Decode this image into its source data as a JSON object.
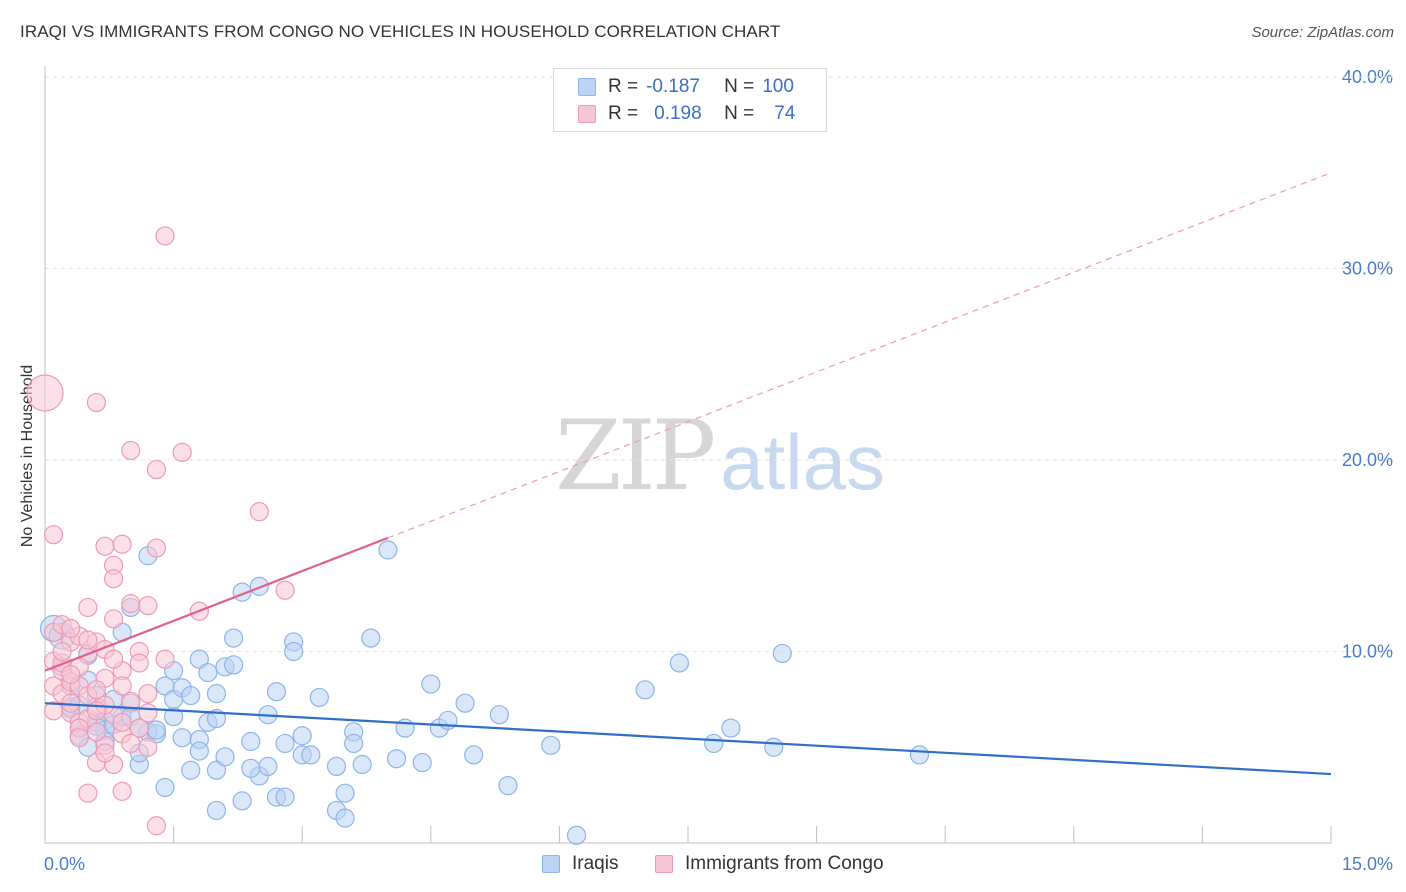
{
  "title": "IRAQI VS IMMIGRANTS FROM CONGO NO VEHICLES IN HOUSEHOLD CORRELATION CHART",
  "source": "Source: ZipAtlas.com",
  "colors": {
    "blue": "#8fb4ea",
    "blue_fill": "#bcd3f3",
    "blue_line": "#2f6fca",
    "pink": "#ef9ab5",
    "pink_fill": "#f7c6d5",
    "pink_line": "#e0608c",
    "tick": "#4a7cc9",
    "grid": "#e2e2e2"
  },
  "legend": {
    "rows": [
      {
        "r_label": "R =",
        "r_value": "-0.187",
        "n_label": "N =",
        "n_value": "100"
      },
      {
        "r_label": "R =",
        "r_value": "0.198",
        "n_label": "N =",
        "n_value": "74"
      }
    ]
  },
  "bottom_legend": [
    "Iraqis",
    "Immigrants from Congo"
  ],
  "watermark": {
    "zip": "ZIP",
    "atlas": "atlas"
  },
  "chart_data": {
    "type": "scatter",
    "title": "IRAQI VS IMMIGRANTS FROM CONGO NO VEHICLES IN HOUSEHOLD CORRELATION CHART",
    "xlabel": "",
    "ylabel": "No Vehicles in Household",
    "xlim": [
      0,
      15
    ],
    "ylim": [
      0,
      40
    ],
    "x_tick_labels": [
      "0.0%",
      "15.0%"
    ],
    "y_ticks": [
      10,
      20,
      30,
      40
    ],
    "y_tick_labels": [
      "10.0%",
      "20.0%",
      "30.0%",
      "40.0%"
    ],
    "grid": true,
    "legend_position": "top-center",
    "series": [
      {
        "name": "Iraqis",
        "color": "#8fb4ea",
        "r": -0.187,
        "n": 100,
        "trend": {
          "x": [
            0,
            15
          ],
          "y": [
            7.3,
            3.6
          ],
          "dashed_from": null
        },
        "points": [
          [
            0.1,
            11.2
          ],
          [
            0.2,
            10.8
          ],
          [
            0.2,
            9.2
          ],
          [
            0.3,
            8.2
          ],
          [
            0.3,
            7.1
          ],
          [
            0.4,
            6.0
          ],
          [
            0.4,
            5.6
          ],
          [
            0.5,
            9.8
          ],
          [
            0.5,
            5.0
          ],
          [
            0.6,
            7.7
          ],
          [
            0.6,
            6.3
          ],
          [
            0.7,
            6.4
          ],
          [
            0.7,
            5.9
          ],
          [
            0.8,
            7.5
          ],
          [
            0.8,
            6.2
          ],
          [
            0.9,
            6.6
          ],
          [
            0.9,
            11.0
          ],
          [
            1.0,
            12.3
          ],
          [
            1.0,
            7.3
          ],
          [
            1.1,
            4.1
          ],
          [
            1.1,
            4.7
          ],
          [
            1.2,
            15.0
          ],
          [
            1.2,
            5.8
          ],
          [
            1.3,
            5.7
          ],
          [
            1.4,
            8.2
          ],
          [
            1.4,
            2.9
          ],
          [
            1.5,
            9.0
          ],
          [
            1.5,
            6.6
          ],
          [
            1.5,
            7.5
          ],
          [
            1.6,
            8.1
          ],
          [
            1.6,
            5.5
          ],
          [
            1.7,
            3.8
          ],
          [
            1.7,
            7.7
          ],
          [
            1.8,
            9.6
          ],
          [
            1.8,
            5.4
          ],
          [
            1.9,
            8.9
          ],
          [
            1.9,
            6.3
          ],
          [
            2.0,
            3.8
          ],
          [
            2.0,
            1.7
          ],
          [
            2.0,
            7.8
          ],
          [
            2.1,
            4.5
          ],
          [
            2.1,
            9.2
          ],
          [
            2.2,
            10.7
          ],
          [
            2.2,
            9.3
          ],
          [
            2.3,
            13.1
          ],
          [
            2.3,
            2.2
          ],
          [
            2.4,
            5.3
          ],
          [
            2.5,
            13.4
          ],
          [
            2.5,
            3.5
          ],
          [
            2.6,
            6.7
          ],
          [
            2.6,
            4.0
          ],
          [
            2.7,
            2.4
          ],
          [
            2.7,
            7.9
          ],
          [
            2.8,
            5.2
          ],
          [
            2.8,
            2.4
          ],
          [
            2.9,
            10.5
          ],
          [
            2.9,
            10.0
          ],
          [
            3.0,
            4.6
          ],
          [
            3.1,
            4.6
          ],
          [
            3.2,
            7.6
          ],
          [
            3.4,
            1.7
          ],
          [
            3.4,
            4.0
          ],
          [
            3.5,
            2.6
          ],
          [
            3.5,
            1.3
          ],
          [
            3.6,
            5.8
          ],
          [
            3.6,
            5.2
          ],
          [
            3.7,
            4.1
          ],
          [
            3.8,
            10.7
          ],
          [
            4.0,
            15.3
          ],
          [
            4.1,
            4.4
          ],
          [
            4.2,
            6.0
          ],
          [
            4.4,
            4.2
          ],
          [
            4.5,
            8.3
          ],
          [
            4.6,
            6.0
          ],
          [
            4.7,
            6.4
          ],
          [
            4.9,
            7.3
          ],
          [
            5.0,
            4.6
          ],
          [
            5.3,
            6.7
          ],
          [
            5.4,
            3.0
          ],
          [
            5.9,
            5.1
          ],
          [
            6.2,
            0.4
          ],
          [
            7.0,
            8.0
          ],
          [
            7.4,
            9.4
          ],
          [
            7.8,
            5.2
          ],
          [
            8.0,
            6.0
          ],
          [
            8.5,
            5.0
          ],
          [
            8.6,
            9.9
          ],
          [
            10.2,
            4.6
          ],
          [
            1.3,
            5.9
          ],
          [
            0.6,
            6.1
          ],
          [
            1.0,
            6.6
          ],
          [
            2.0,
            6.5
          ],
          [
            0.3,
            7.0
          ],
          [
            0.5,
            8.5
          ],
          [
            1.8,
            4.8
          ],
          [
            0.4,
            7.2
          ],
          [
            0.7,
            5.3
          ],
          [
            1.1,
            6.0
          ],
          [
            2.4,
            3.9
          ],
          [
            3.0,
            5.6
          ]
        ]
      },
      {
        "name": "Immigrants from Congo",
        "color": "#ef9ab5",
        "r": 0.198,
        "n": 74,
        "trend": {
          "x": [
            0,
            15
          ],
          "y": [
            9.0,
            35.0
          ],
          "dashed_from": 4.0
        },
        "points": [
          [
            0.0,
            23.5
          ],
          [
            0.1,
            16.1
          ],
          [
            0.1,
            11.0
          ],
          [
            0.1,
            9.5
          ],
          [
            0.1,
            8.2
          ],
          [
            0.2,
            11.4
          ],
          [
            0.2,
            9.0
          ],
          [
            0.2,
            7.8
          ],
          [
            0.3,
            10.5
          ],
          [
            0.3,
            8.4
          ],
          [
            0.3,
            6.8
          ],
          [
            0.4,
            10.8
          ],
          [
            0.4,
            8.2
          ],
          [
            0.4,
            6.3
          ],
          [
            0.5,
            12.3
          ],
          [
            0.5,
            9.9
          ],
          [
            0.5,
            6.5
          ],
          [
            0.5,
            2.6
          ],
          [
            0.6,
            23.0
          ],
          [
            0.6,
            10.5
          ],
          [
            0.6,
            7.1
          ],
          [
            0.6,
            4.2
          ],
          [
            0.7,
            15.5
          ],
          [
            0.7,
            8.6
          ],
          [
            0.7,
            5.1
          ],
          [
            0.8,
            14.5
          ],
          [
            0.8,
            11.7
          ],
          [
            0.8,
            6.7
          ],
          [
            0.8,
            4.1
          ],
          [
            0.9,
            15.6
          ],
          [
            0.9,
            9.0
          ],
          [
            0.9,
            5.7
          ],
          [
            0.9,
            2.7
          ],
          [
            1.0,
            20.5
          ],
          [
            1.0,
            12.5
          ],
          [
            1.0,
            7.4
          ],
          [
            1.1,
            6.0
          ],
          [
            1.2,
            12.4
          ],
          [
            1.2,
            6.8
          ],
          [
            1.3,
            19.5
          ],
          [
            1.3,
            15.4
          ],
          [
            1.3,
            0.9
          ],
          [
            1.4,
            31.7
          ],
          [
            1.4,
            9.6
          ],
          [
            1.6,
            20.4
          ],
          [
            1.8,
            12.1
          ],
          [
            2.5,
            17.3
          ],
          [
            2.8,
            13.2
          ],
          [
            0.2,
            9.4
          ],
          [
            0.3,
            7.3
          ],
          [
            0.4,
            9.2
          ],
          [
            0.5,
            7.7
          ],
          [
            0.6,
            8.0
          ],
          [
            0.7,
            7.2
          ],
          [
            0.7,
            10.1
          ],
          [
            0.8,
            13.8
          ],
          [
            0.9,
            8.2
          ],
          [
            1.0,
            5.2
          ],
          [
            1.1,
            10.0
          ],
          [
            1.2,
            7.8
          ],
          [
            0.2,
            10.0
          ],
          [
            0.3,
            11.2
          ],
          [
            0.4,
            6.0
          ],
          [
            0.6,
            5.8
          ],
          [
            0.1,
            6.9
          ],
          [
            0.3,
            8.8
          ],
          [
            0.5,
            10.6
          ],
          [
            0.7,
            4.7
          ],
          [
            0.9,
            6.3
          ],
          [
            1.1,
            9.4
          ],
          [
            1.2,
            5.0
          ],
          [
            0.8,
            9.6
          ],
          [
            0.4,
            5.5
          ],
          [
            0.6,
            6.9
          ]
        ]
      }
    ]
  }
}
